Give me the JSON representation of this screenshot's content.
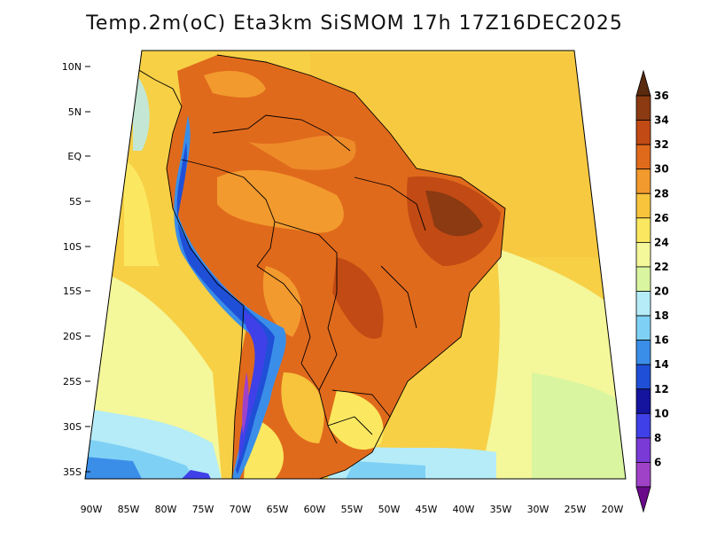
{
  "title": "Temp.2m(oC) Eta3km SiSMOM 17h 17Z16DEC2025",
  "lat_ticks": [
    "10N",
    "5N",
    "EQ",
    "5S",
    "10S",
    "15S",
    "20S",
    "25S",
    "30S",
    "35S"
  ],
  "lon_ticks": [
    "90W",
    "85W",
    "80W",
    "75W",
    "70W",
    "65W",
    "60W",
    "55W",
    "50W",
    "45W",
    "40W",
    "35W",
    "30W",
    "25W",
    "20W"
  ],
  "colorbar": {
    "labels": [
      "36",
      "34",
      "32",
      "30",
      "28",
      "26",
      "24",
      "22",
      "20",
      "18",
      "16",
      "14",
      "12",
      "10",
      "8",
      "6"
    ],
    "colors": [
      "#5a2a0e",
      "#8b3a12",
      "#c24a14",
      "#e06a1c",
      "#f29a2e",
      "#f7c43c",
      "#fbe860",
      "#f4f79a",
      "#d9f5a0",
      "#b5ecf7",
      "#7fd0f5",
      "#3a8ee8",
      "#1f4fd6",
      "#14149e",
      "#4040e8",
      "#7a3ad6",
      "#a042c8",
      "#6a0a8a"
    ]
  }
}
